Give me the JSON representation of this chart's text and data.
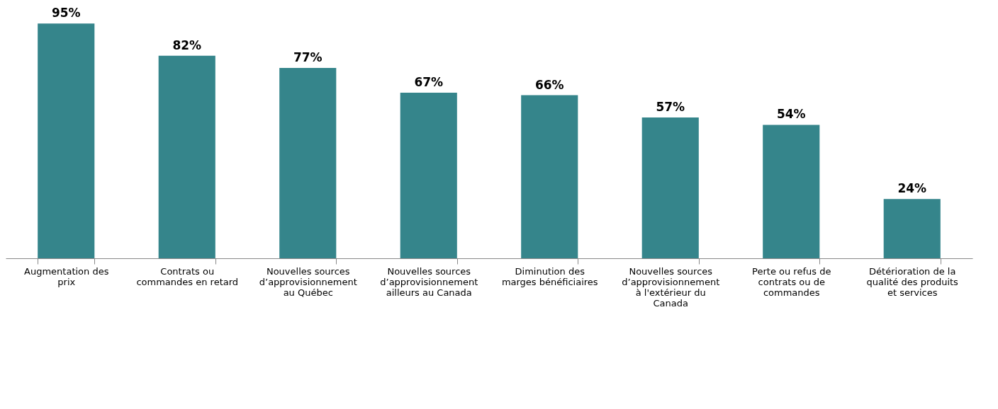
{
  "chart_data": {
    "type": "bar",
    "categories": [
      "Augmentation des prix",
      "Contrats ou commandes en retard",
      "Nouvelles sources d’approvisionnement au Québec",
      "Nouvelles sources d’approvisionnement ailleurs au Canada",
      "Diminution des marges bénéficiaires",
      "Nouvelles sources d’approvisionnement à l'extérieur du Canada",
      "Perte ou refus de contrats ou de commandes",
      "Détérioration de la qualité des produits et services"
    ],
    "values": [
      95,
      82,
      77,
      67,
      66,
      57,
      54,
      24
    ],
    "value_labels": [
      "95%",
      "82%",
      "77%",
      "67%",
      "66%",
      "57%",
      "54%",
      "24%"
    ],
    "color": "#35858b"
  }
}
